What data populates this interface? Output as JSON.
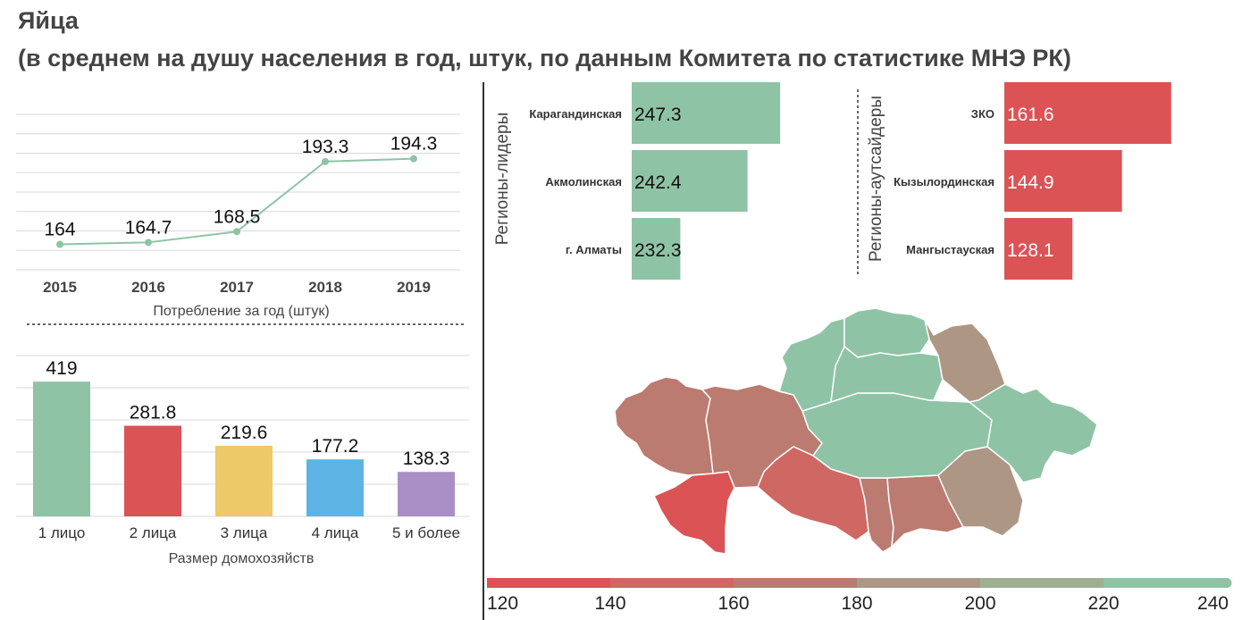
{
  "header": {
    "title": "Яйца",
    "subtitle": "(в среднем на душу населения в год, штук, по данным Комитета по статистике МНЭ РК)"
  },
  "colors": {
    "green": "#8fc3a6",
    "red": "#dc5355",
    "yellow": "#edc967",
    "blue": "#5db4e4",
    "purple": "#a98fc6",
    "scale": [
      "#dc5355",
      "#cf6763",
      "#bb7b70",
      "#ad9684",
      "#9fb091",
      "#8fc3a6"
    ]
  },
  "chart_data": [
    {
      "id": "annual",
      "type": "line",
      "x": [
        "2015",
        "2016",
        "2017",
        "2018",
        "2019"
      ],
      "values": [
        164,
        164.7,
        168.5,
        193.3,
        194.3
      ],
      "labels": [
        "164",
        "164.7",
        "168.5",
        "193.3",
        "194.3"
      ],
      "xlabel": "Потребление за год (штук)",
      "ylim": [
        155,
        210
      ],
      "grid": true
    },
    {
      "id": "household",
      "type": "bar",
      "categories": [
        "1 лицо",
        "2 лица",
        "3 лица",
        "4 лица",
        "5 и более"
      ],
      "values": [
        419,
        281.8,
        219.6,
        177.2,
        138.3
      ],
      "labels": [
        "419",
        "281.8",
        "219.6",
        "177.2",
        "138.3"
      ],
      "xlabel": "Размер домохозяйств",
      "ylim": [
        0,
        500
      ],
      "grid": true
    },
    {
      "id": "leaders",
      "type": "bar",
      "orientation": "horizontal",
      "group_label": "Регионы-лидеры",
      "categories": [
        "Карагандинская",
        "Акмолинская",
        "г. Алматы"
      ],
      "values": [
        247.3,
        242.4,
        232.3
      ],
      "labels": [
        "247.3",
        "242.4",
        "232.3"
      ]
    },
    {
      "id": "outsiders",
      "type": "bar",
      "orientation": "horizontal",
      "group_label": "Регионы-аутсайдеры",
      "categories": [
        "ЗКО",
        "Кызылординская",
        "Мангыстауская"
      ],
      "values": [
        161.6,
        144.9,
        128.1
      ],
      "labels": [
        "161.6",
        "144.9",
        "128.1"
      ]
    },
    {
      "id": "scale",
      "type": "heatmap",
      "ticks": [
        "120",
        "140",
        "160",
        "180",
        "200",
        "220",
        "240"
      ]
    }
  ]
}
